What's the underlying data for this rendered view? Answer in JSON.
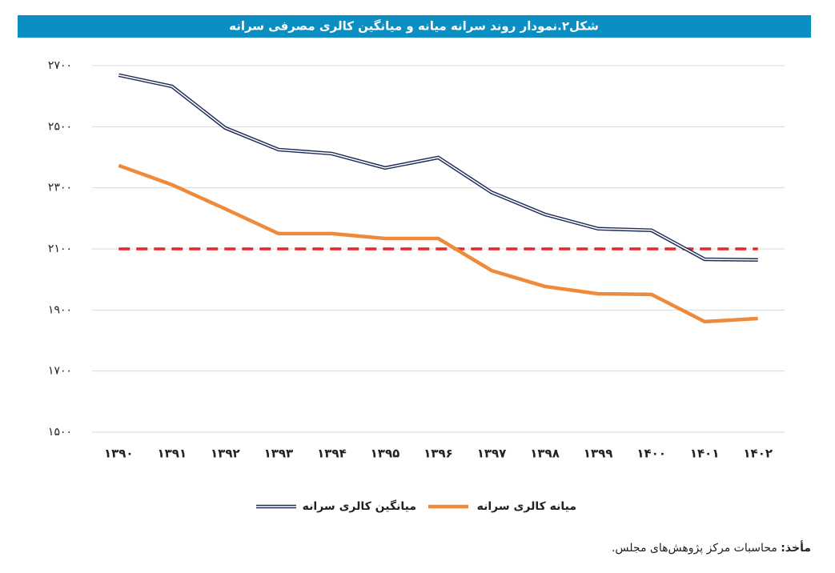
{
  "chart_data": {
    "type": "line",
    "title": "شکل۲.نمودار روند سرانه میانه و میانگین کالری مصرفی سرانه",
    "categories": [
      "۱۳۹۰",
      "۱۳۹۱",
      "۱۳۹۲",
      "۱۳۹۳",
      "۱۳۹۴",
      "۱۳۹۵",
      "۱۳۹۶",
      "۱۳۹۷",
      "۱۳۹۸",
      "۱۳۹۹",
      "۱۴۰۰",
      "۱۴۰۱",
      "۱۴۰۲"
    ],
    "series": [
      {
        "name": "میانگین کالری سرانه",
        "color": "#1f2d5a",
        "values": [
          2669,
          2632,
          2496,
          2425,
          2412,
          2365,
          2399,
          2285,
          2213,
          2166,
          2161,
          2066,
          2064
        ]
      },
      {
        "name": "میانه کالری سرانه",
        "color": "#ee8a3a",
        "values": [
          2373,
          2310,
          2231,
          2150,
          2150,
          2134,
          2134,
          2029,
          1977,
          1953,
          1951,
          1862,
          1872
        ]
      }
    ],
    "reference_line": {
      "value": 2100,
      "color": "#e8262a",
      "dashed": true
    },
    "ylim": [
      1500,
      2700
    ],
    "yticks": [
      {
        "value": 1500,
        "label": "۱۵۰۰"
      },
      {
        "value": 1700,
        "label": "۱۷۰۰"
      },
      {
        "value": 1900,
        "label": "۱۹۰۰"
      },
      {
        "value": 2100,
        "label": "۲۱۰۰"
      },
      {
        "value": 2300,
        "label": "۲۳۰۰"
      },
      {
        "value": 2500,
        "label": "۲۵۰۰"
      },
      {
        "value": 2700,
        "label": "۲۷۰۰"
      }
    ],
    "grid": true,
    "legend": "bottom",
    "source_label": "مأخذ:",
    "source_text": "محاسبات مرکز پژوهش‌های مجلس."
  }
}
